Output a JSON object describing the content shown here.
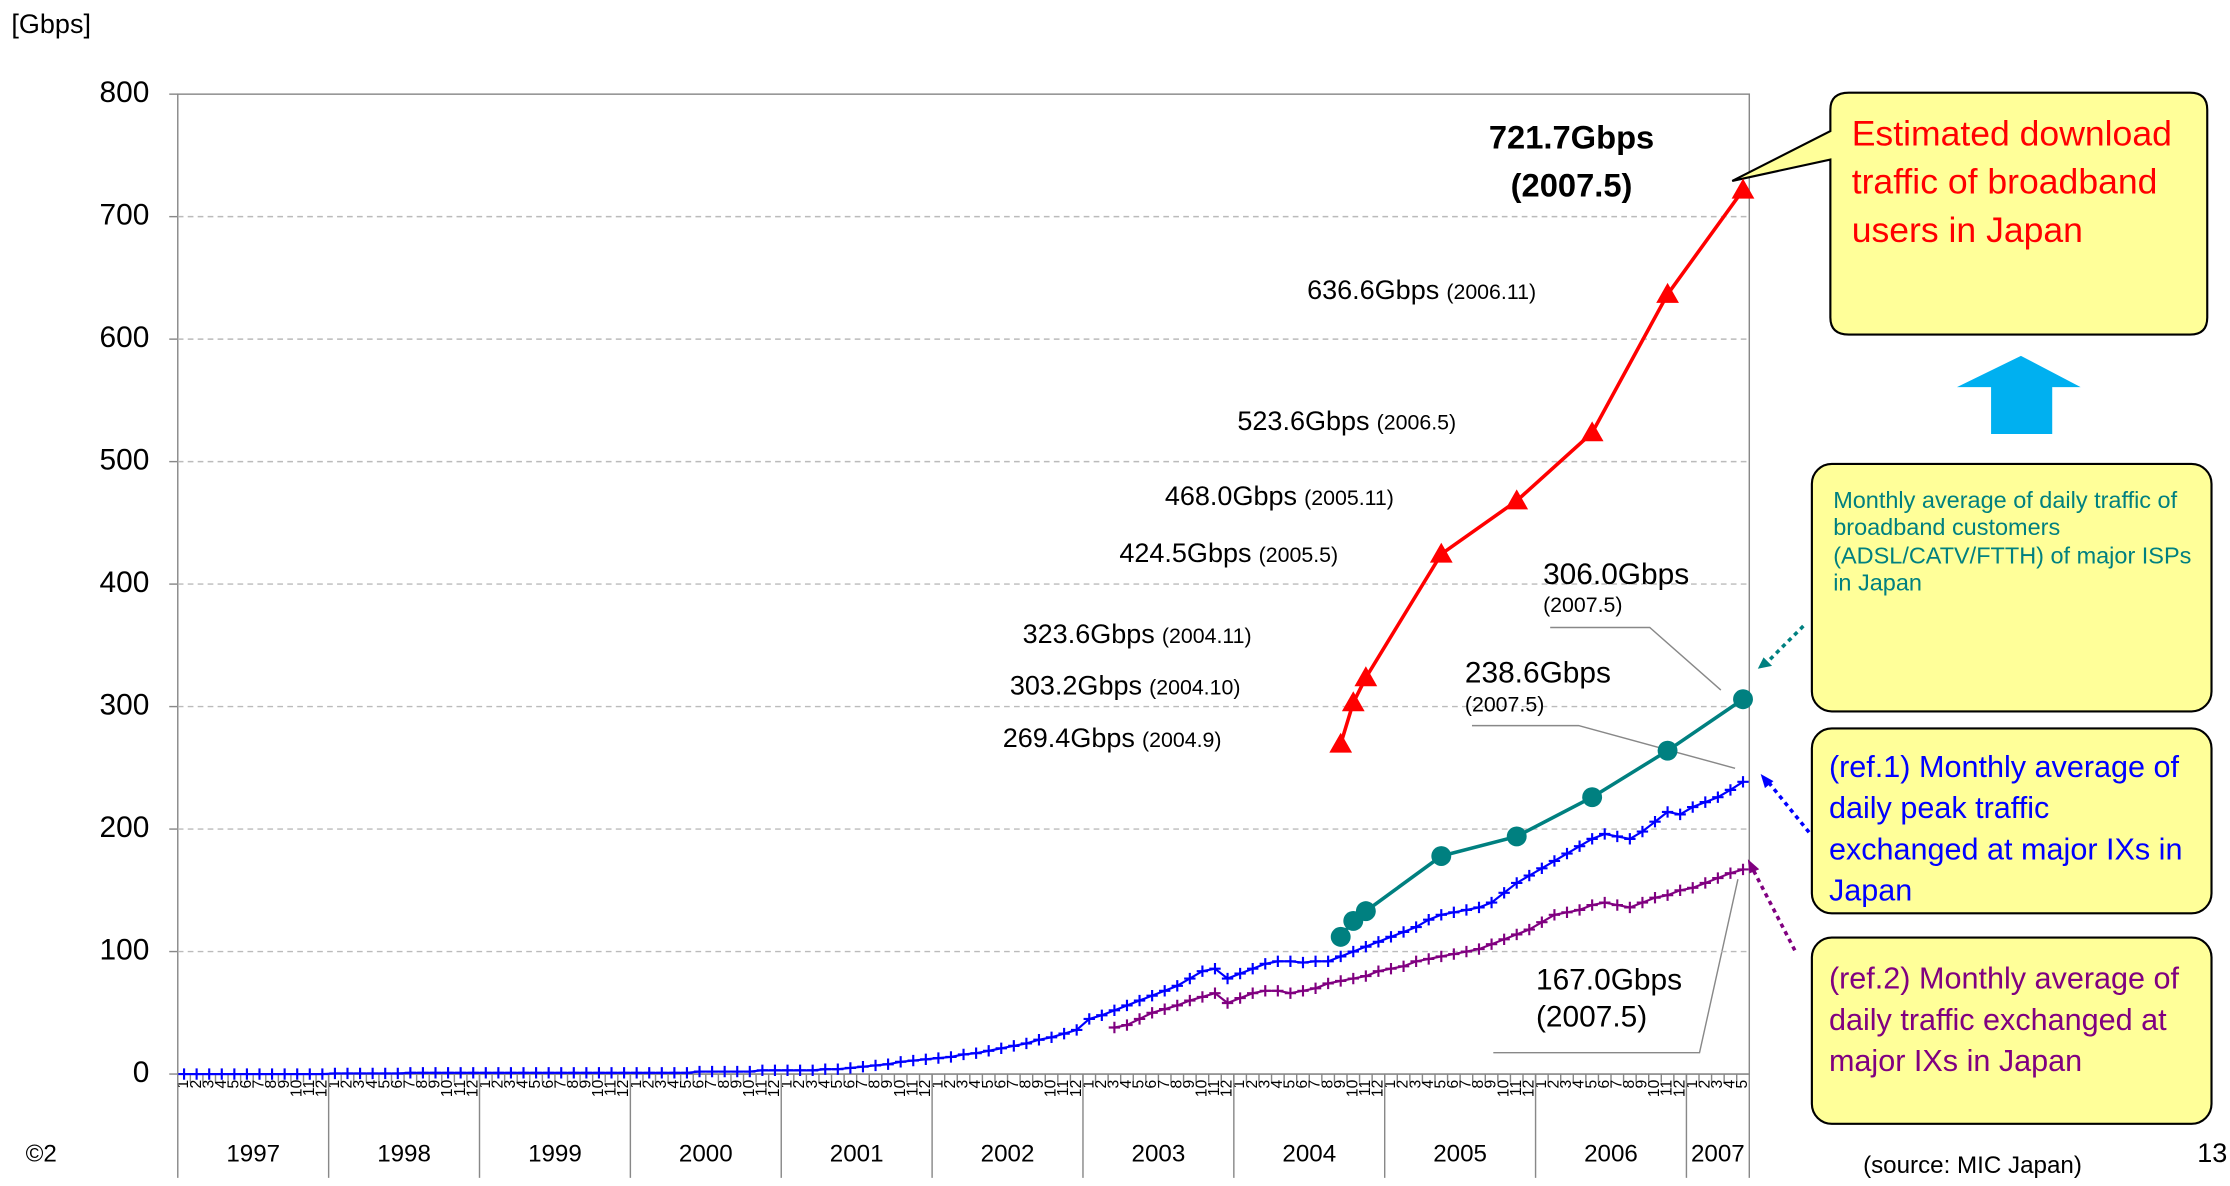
{
  "chart_data": {
    "type": "line",
    "y_label": "[Gbps]",
    "ylim": [
      0,
      800
    ],
    "yticks": [
      0,
      100,
      200,
      300,
      400,
      500,
      600,
      700,
      800
    ],
    "grid": true,
    "categories": [
      "1",
      "2",
      "3",
      "4",
      "5",
      "6",
      "7",
      "8",
      "9",
      "10",
      "11",
      "12",
      "1",
      "2",
      "3",
      "4",
      "5",
      "6",
      "7",
      "8",
      "9",
      "10",
      "11",
      "12",
      "1",
      "2",
      "3",
      "4",
      "5",
      "6",
      "7",
      "8",
      "9",
      "10",
      "11",
      "12",
      "1",
      "2",
      "3",
      "4",
      "5",
      "6",
      "7",
      "8",
      "9",
      "10",
      "11",
      "12",
      "1",
      "2",
      "3",
      "4",
      "5",
      "6",
      "7",
      "8",
      "9",
      "10",
      "11",
      "12",
      "1",
      "2",
      "3",
      "4",
      "5",
      "6",
      "7",
      "8",
      "9",
      "10",
      "11",
      "12",
      "1",
      "2",
      "3",
      "4",
      "5",
      "6",
      "7",
      "8",
      "9",
      "10",
      "11",
      "12",
      "1",
      "2",
      "3",
      "4",
      "5",
      "6",
      "7",
      "8",
      "9",
      "10",
      "11",
      "12",
      "1",
      "2",
      "3",
      "4",
      "5",
      "6",
      "7",
      "8",
      "9",
      "10",
      "11",
      "12",
      "1",
      "2",
      "3",
      "4",
      "5",
      "6",
      "7",
      "8",
      "9",
      "10",
      "11",
      "12",
      "1",
      "2",
      "3",
      "4",
      "5"
    ],
    "years": [
      "1997",
      "1998",
      "1999",
      "2000",
      "2001",
      "2002",
      "2003",
      "2004",
      "2005",
      "2006",
      "2007"
    ],
    "series": [
      {
        "name": "Estimated download traffic of broadband users in Japan",
        "color": "#ff0000",
        "marker": "triangle",
        "x": [
          "2004.9",
          "2004.10",
          "2004.11",
          "2005.5",
          "2005.11",
          "2006.5",
          "2006.11",
          "2007.5"
        ],
        "values": [
          269.4,
          303.2,
          323.6,
          424.5,
          468.0,
          523.6,
          636.6,
          721.7
        ],
        "value_labels": [
          "269.4Gbps",
          "303.2Gbps",
          "323.6Gbps",
          "424.5Gbps",
          "468.0Gbps",
          "523.6Gbps",
          "636.6Gbps",
          "721.7Gbps"
        ],
        "date_labels": [
          "(2004.9)",
          "(2004.10)",
          "(2004.11)",
          "(2005.5)",
          "(2005.11)",
          "(2006.5)",
          "(2006.11)",
          "(2007.5)"
        ]
      },
      {
        "name": "Monthly average of daily traffic of broadband customers (ADSL/CATV/FTTH) of major ISPs in Japan",
        "color": "#008080",
        "marker": "circle",
        "x": [
          "2004.9",
          "2004.10",
          "2004.11",
          "2005.5",
          "2005.11",
          "2006.5",
          "2006.11",
          "2007.5"
        ],
        "values": [
          112,
          125,
          133,
          178,
          194,
          226,
          264,
          306.0
        ],
        "end_label": "306.0Gbps",
        "end_date": "(2007.5)"
      },
      {
        "name": "(ref.1) Monthly average of daily peak traffic exchanged at major IXs in Japan",
        "color": "#0000ff",
        "marker": "plus",
        "values": [
          0,
          0,
          0,
          0,
          0,
          0,
          0,
          0,
          0,
          0,
          0,
          0,
          0.5,
          0.5,
          0.5,
          0.5,
          0.5,
          0.5,
          1,
          1,
          1,
          1,
          1,
          1,
          1,
          1,
          1,
          1,
          1,
          1,
          1,
          1,
          1,
          1,
          1,
          1,
          1,
          1,
          1,
          1,
          1,
          2,
          2,
          2,
          2,
          2,
          3,
          3,
          3,
          3,
          3,
          4,
          4,
          5,
          6,
          7,
          8,
          10,
          11,
          12,
          13,
          14,
          16,
          17,
          19,
          21,
          23,
          25,
          28,
          30,
          33,
          36,
          45,
          48,
          52,
          56,
          60,
          64,
          68,
          72,
          78,
          84,
          86,
          78,
          82,
          86,
          90,
          92,
          92,
          91,
          92,
          92,
          96,
          100,
          104,
          108,
          112,
          116,
          120,
          126,
          130,
          132,
          134,
          136,
          140,
          148,
          156,
          162,
          168,
          174,
          180,
          186,
          192,
          196,
          194,
          192,
          198,
          206,
          214,
          212,
          218,
          222,
          226,
          232,
          238.6
        ],
        "end_label": "238.6Gbps",
        "end_date": "(2007.5)"
      },
      {
        "name": "(ref.2) Monthly average of daily traffic exchanged at major IXs in Japan",
        "color": "#800080",
        "marker": "plus",
        "values": [
          null,
          null,
          null,
          null,
          null,
          null,
          null,
          null,
          null,
          null,
          null,
          null,
          null,
          null,
          null,
          null,
          null,
          null,
          null,
          null,
          null,
          null,
          null,
          null,
          null,
          null,
          null,
          null,
          null,
          null,
          null,
          null,
          null,
          null,
          null,
          null,
          null,
          null,
          null,
          null,
          null,
          null,
          null,
          null,
          null,
          null,
          null,
          null,
          null,
          null,
          null,
          null,
          null,
          null,
          null,
          null,
          null,
          null,
          null,
          null,
          null,
          null,
          null,
          null,
          null,
          null,
          null,
          null,
          null,
          null,
          null,
          null,
          null,
          null,
          38,
          40,
          45,
          50,
          53,
          56,
          60,
          63,
          66,
          58,
          62,
          66,
          68,
          68,
          66,
          68,
          70,
          74,
          76,
          78,
          80,
          84,
          86,
          88,
          92,
          94,
          96,
          98,
          100,
          102,
          106,
          110,
          114,
          118,
          124,
          130,
          132,
          134,
          138,
          140,
          138,
          136,
          140,
          144,
          146,
          150,
          152,
          156,
          160,
          164,
          167
        ],
        "end_label": "167.0Gbps",
        "end_date": "(2007.5)"
      }
    ],
    "source": "(source: MIC Japan)",
    "page_number": "13",
    "copyright": "©2"
  }
}
